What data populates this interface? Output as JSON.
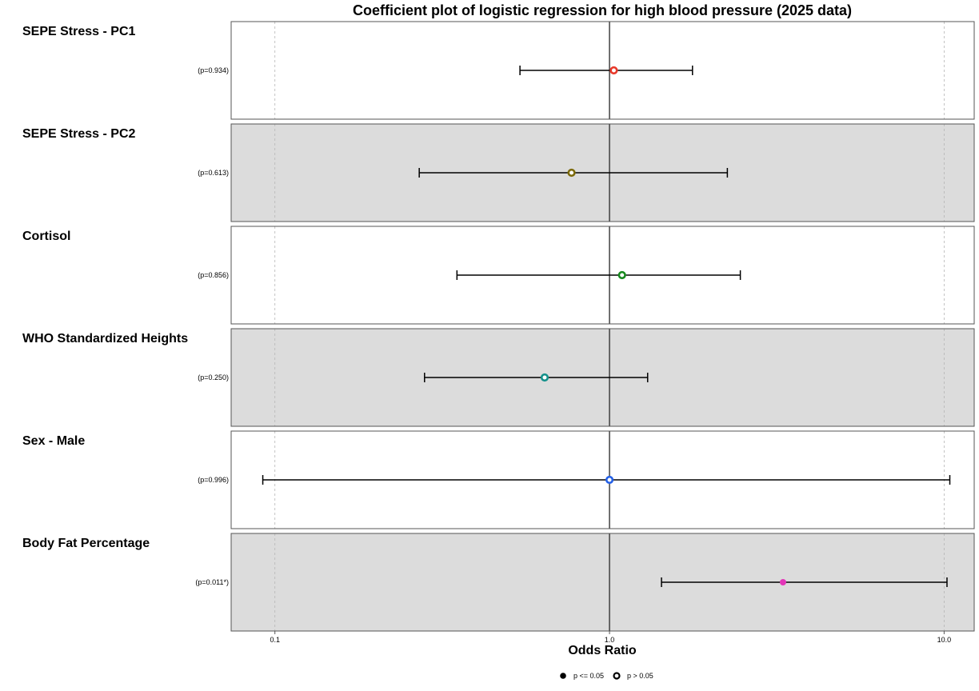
{
  "chart_data": {
    "type": "scatter",
    "subtype": "coefficient-plot",
    "title": "Coefficient plot of logistic regression for high blood pressure (2025 data)",
    "xlabel": "Odds Ratio",
    "x_scale": "log10",
    "xlim": [
      0.074,
      12.3
    ],
    "x_ticks": [
      0.1,
      1.0,
      10.0
    ],
    "x_tick_labels": [
      "0.1",
      "1.0",
      "10.0"
    ],
    "reference_line": 1.0,
    "grid": "vertical dashed at ticks",
    "rows": [
      {
        "label": "SEPE Stress - PC1",
        "estimate": 1.03,
        "ci_low": 0.54,
        "ci_high": 1.77,
        "p_label": "(p=0.934)",
        "significant": false,
        "color": "#e8392a",
        "band": "#ffffff"
      },
      {
        "label": "SEPE Stress - PC2",
        "estimate": 0.77,
        "ci_low": 0.27,
        "ci_high": 2.25,
        "p_label": "(p=0.613)",
        "significant": false,
        "color": "#7c6a0a",
        "band": "#dcdcdc"
      },
      {
        "label": "Cortisol",
        "estimate": 1.09,
        "ci_low": 0.35,
        "ci_high": 2.46,
        "p_label": "(p=0.856)",
        "significant": false,
        "color": "#178a1f",
        "band": "#ffffff"
      },
      {
        "label": "WHO Standardized Heights",
        "estimate": 0.64,
        "ci_low": 0.28,
        "ci_high": 1.3,
        "p_label": "(p=0.250)",
        "significant": false,
        "color": "#14918b",
        "band": "#dcdcdc"
      },
      {
        "label": "Sex - Male",
        "estimate": 1.0,
        "ci_low": 0.092,
        "ci_high": 10.4,
        "p_label": "(p=0.996)",
        "significant": false,
        "color": "#2460e6",
        "band": "#ffffff"
      },
      {
        "label": "Body Fat Percentage",
        "estimate": 3.3,
        "ci_low": 1.43,
        "ci_high": 10.2,
        "p_label": "(p=0.011*)",
        "significant": true,
        "color": "#e335b8",
        "band": "#dcdcdc"
      }
    ],
    "legend": {
      "placement": "bottom-center",
      "entries": [
        {
          "label": "p <= 0.05",
          "marker": "filled"
        },
        {
          "label": "p > 0.05",
          "marker": "hollow"
        }
      ]
    }
  }
}
